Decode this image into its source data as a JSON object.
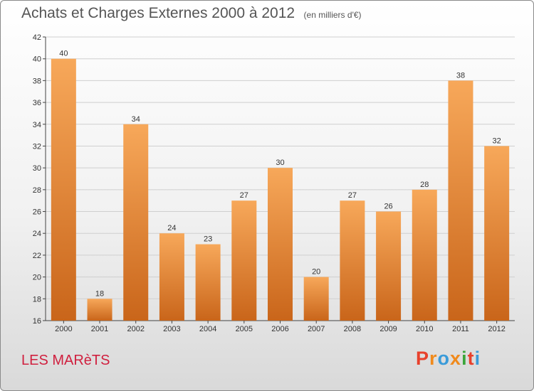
{
  "title": "Achats et Charges Externes 2000 à 2012",
  "unit_label": "(en milliers d'€)",
  "commune": "LES MARèTS",
  "brand": {
    "text": "Proxiti",
    "colors": [
      "#e8412c",
      "#f08a1c",
      "#3a9bd9",
      "#f08a1c",
      "#3aa53a",
      "#e8412c",
      "#3a9bd9"
    ]
  },
  "colors": {
    "bar_light": "#f7a85a",
    "bar_dark": "#c9651a",
    "axis": "#444444",
    "grid": "#cfcfcf",
    "commune": "#d0203f"
  },
  "chart_data": {
    "type": "bar",
    "categories": [
      "2000",
      "2001",
      "2002",
      "2003",
      "2004",
      "2005",
      "2006",
      "2007",
      "2008",
      "2009",
      "2010",
      "2011",
      "2012"
    ],
    "values": [
      40,
      18,
      34,
      24,
      23,
      27,
      30,
      20,
      27,
      26,
      28,
      38,
      32
    ],
    "ylim": [
      16,
      42
    ],
    "yticks": [
      16,
      18,
      20,
      22,
      24,
      26,
      28,
      30,
      32,
      34,
      36,
      38,
      40,
      42
    ],
    "grid": true,
    "data_labels": true
  }
}
